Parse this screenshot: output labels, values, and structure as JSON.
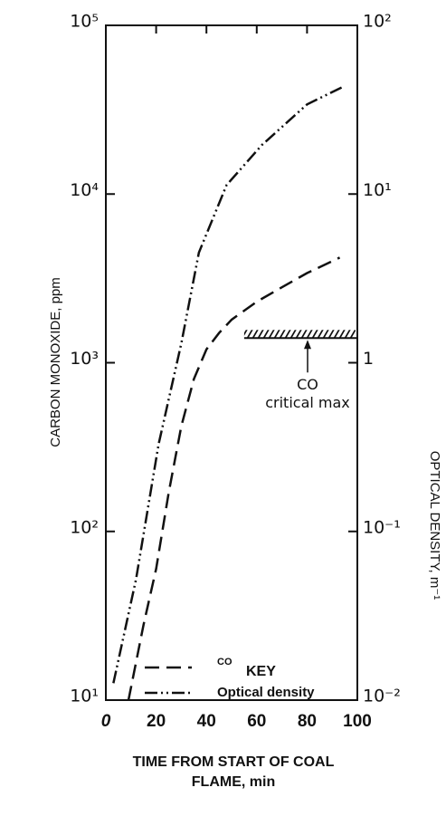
{
  "chart_data": {
    "type": "line",
    "y_label": "CARBON MONOXIDE, ppm",
    "y2_label": "OPTICAL DENSITY, m⁻¹",
    "x_label": [
      "TIME  FROM START OF COAL",
      "FLAME, min"
    ],
    "xlim": [
      0,
      100
    ],
    "xticks": [
      0,
      20,
      40,
      60,
      80,
      100
    ],
    "ylim": [
      10,
      100000
    ],
    "ylog": true,
    "yticks": [
      {
        "value": 10,
        "label": "10¹"
      },
      {
        "value": 100,
        "label": "10²"
      },
      {
        "value": 1000,
        "label": "10³"
      },
      {
        "value": 10000,
        "label": "10⁴"
      },
      {
        "value": 100000,
        "label": "10⁵"
      }
    ],
    "y2lim": [
      0.01,
      100
    ],
    "y2log": true,
    "y2ticks": [
      {
        "value": 0.01,
        "label": "10⁻²"
      },
      {
        "value": 0.1,
        "label": "10⁻¹"
      },
      1,
      {
        "value": 10,
        "label": "10¹"
      },
      {
        "value": 100,
        "label": "10²"
      }
    ],
    "series": [
      {
        "name": "CO",
        "color": "#111111",
        "dash": "dashed",
        "x": [
          9,
          15,
          20,
          25,
          30,
          35,
          40,
          45,
          50,
          60,
          70,
          80,
          93
        ],
        "values": [
          10,
          28,
          60,
          170,
          420,
          800,
          1200,
          1500,
          1800,
          2300,
          2800,
          3400,
          4200
        ]
      },
      {
        "name": "Optical density",
        "color": "#111111",
        "dash": "dash-dot-dot",
        "axis": "y2",
        "x": [
          3,
          12,
          21,
          30,
          37,
          48,
          62,
          80,
          94
        ],
        "values": [
          0.0126,
          0.052,
          0.33,
          1.3,
          4.5,
          11.3,
          19.5,
          34,
          43
        ]
      }
    ],
    "critical_max": {
      "value": 1400,
      "x": [
        55,
        100
      ],
      "label": [
        "CO",
        "critical max"
      ]
    },
    "legend_title": "KEY"
  }
}
